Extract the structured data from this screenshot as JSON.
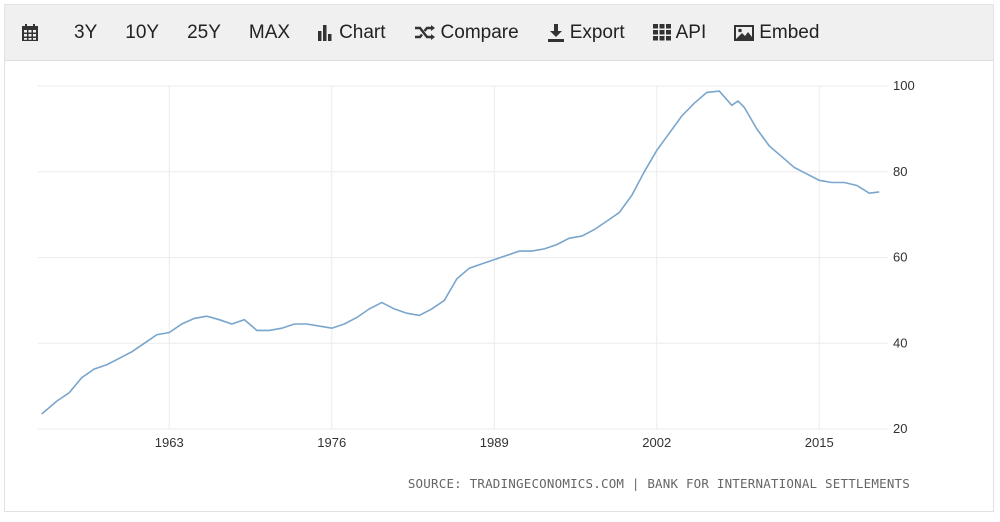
{
  "toolbar": {
    "items": [
      {
        "label": "",
        "icon": "calendar-icon"
      },
      {
        "label": "3Y"
      },
      {
        "label": "10Y"
      },
      {
        "label": "25Y"
      },
      {
        "label": "MAX"
      },
      {
        "label": "Chart",
        "icon": "bar-chart-icon"
      },
      {
        "label": "Compare",
        "icon": "shuffle-icon"
      },
      {
        "label": "Export",
        "icon": "download-icon"
      },
      {
        "label": "API",
        "icon": "grid-icon"
      },
      {
        "label": "Embed",
        "icon": "image-icon"
      }
    ]
  },
  "source_text": "SOURCE: TRADINGECONOMICS.COM | BANK FOR INTERNATIONAL SETTLEMENTS",
  "chart_data": {
    "type": "line",
    "line_color": "#7aa5cc",
    "grid": true,
    "xlim": [
      1952.5,
      2020.5
    ],
    "ylim": [
      20,
      100
    ],
    "x_ticks": [
      1963,
      1976,
      1989,
      2002,
      2015
    ],
    "y_ticks": [
      20,
      40,
      60,
      80,
      100
    ],
    "series": [
      {
        "x": [
          1952.8,
          1954,
          1955,
          1956,
          1957,
          1958,
          1959,
          1960,
          1961,
          1962,
          1963,
          1964,
          1965,
          1966,
          1967,
          1968,
          1969,
          1970,
          1971,
          1972,
          1973,
          1974,
          1975,
          1976,
          1977,
          1978,
          1979,
          1980,
          1981,
          1982,
          1983,
          1984,
          1985,
          1986,
          1987,
          1988,
          1989,
          1990,
          1991,
          1992,
          1993,
          1994,
          1995,
          1996,
          1997,
          1998,
          1999,
          2000,
          2001,
          2002,
          2003,
          2004,
          2005,
          2006,
          2007,
          2008,
          2008.5,
          2009,
          2010,
          2011,
          2012,
          2013,
          2014,
          2015,
          2016,
          2017,
          2018,
          2019,
          2019.8
        ],
        "y": [
          23.5,
          26.5,
          28.5,
          32,
          34,
          35,
          36.5,
          38,
          40,
          42,
          42.5,
          44.5,
          45.8,
          46.3,
          45.5,
          44.5,
          45.5,
          43,
          43,
          43.5,
          44.5,
          44.5,
          44,
          43.5,
          44.5,
          46,
          48,
          49.5,
          48,
          47,
          46.5,
          48,
          50,
          55,
          57.5,
          58.5,
          59.5,
          60.5,
          61.5,
          61.5,
          62,
          63,
          64.5,
          65,
          66.5,
          68.5,
          70.5,
          74.5,
          80,
          85,
          89,
          93,
          96,
          98.5,
          98.8,
          95.5,
          96.5,
          95,
          90,
          86,
          83.5,
          81,
          79.5,
          78,
          77.5,
          77.5,
          76.8,
          75,
          75.3
        ]
      }
    ]
  }
}
